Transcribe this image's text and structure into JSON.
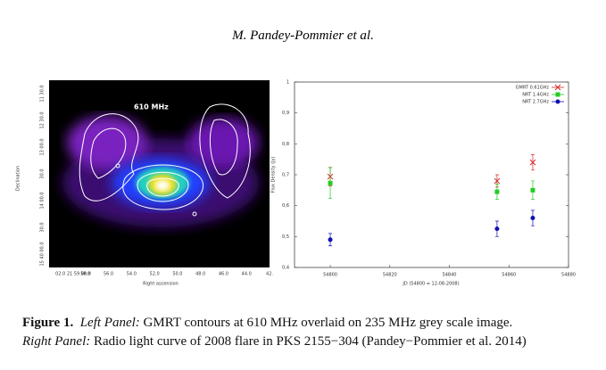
{
  "header": {
    "author": "M. Pandey-Pommier et al."
  },
  "left_panel": {
    "label": "610 MHz",
    "xlabel": "Right ascension",
    "ylabel": "Declination",
    "xtick_labels": [
      "02.0 21 59 00.0",
      "58.0",
      "56.0",
      "54.0",
      "52.0",
      "50.0",
      "48.0",
      "46.0",
      "44.0",
      "42."
    ],
    "ytick_labels": [
      "15 40 00.0",
      "30.0",
      "14 00.0",
      "30.0",
      "13 00.0",
      "12 30.0",
      "11 30.0"
    ]
  },
  "chart_data": {
    "type": "scatter",
    "xlabel": "JD (54800 = 12-08-2008)",
    "ylabel": "Flux Density (Jy)",
    "xlim": [
      54788,
      54880
    ],
    "xticks": [
      54800,
      54820,
      54840,
      54860,
      54880
    ],
    "ylim": [
      0.4,
      1
    ],
    "yticks": [
      {
        "value": 0.4,
        "label": "0,4"
      },
      {
        "value": 0.5,
        "label": "0,5"
      },
      {
        "value": 0.6,
        "label": "0,6"
      },
      {
        "value": 0.7,
        "label": "0,7"
      },
      {
        "value": 0.8,
        "label": "0,8"
      },
      {
        "value": 0.9,
        "label": "0,9"
      },
      1
    ],
    "legend": "upper right",
    "series": [
      {
        "name": "GMRT 0.61GHz",
        "color": "#d62728",
        "marker": "x",
        "x": [
          54800,
          54856,
          54868
        ],
        "values": [
          0.694,
          0.68,
          0.74
        ],
        "errors": [
          0.03,
          0.02,
          0.025
        ]
      },
      {
        "name": "NRT 1.4GHz",
        "color": "#22cc22",
        "marker": "square",
        "x": [
          54800,
          54856,
          54868
        ],
        "values": [
          0.673,
          0.645,
          0.65
        ],
        "errors": [
          0.05,
          0.025,
          0.03
        ]
      },
      {
        "name": "NRT 2.7GHz",
        "color": "#1010b0",
        "marker": "circle",
        "x": [
          54800,
          54856,
          54868
        ],
        "values": [
          0.49,
          0.525,
          0.56
        ],
        "errors": [
          0.02,
          0.025,
          0.025
        ]
      }
    ]
  },
  "caption": {
    "figure": "Figure 1.",
    "left_label": "Left Panel:",
    "left_text": "GMRT contours at 610 MHz overlaid on 235 MHz grey scale image.",
    "right_label": "Right Panel:",
    "right_text": "Radio light curve of 2008 flare in PKS 2155−304 (Pandey−Pommier et al. 2014)"
  }
}
